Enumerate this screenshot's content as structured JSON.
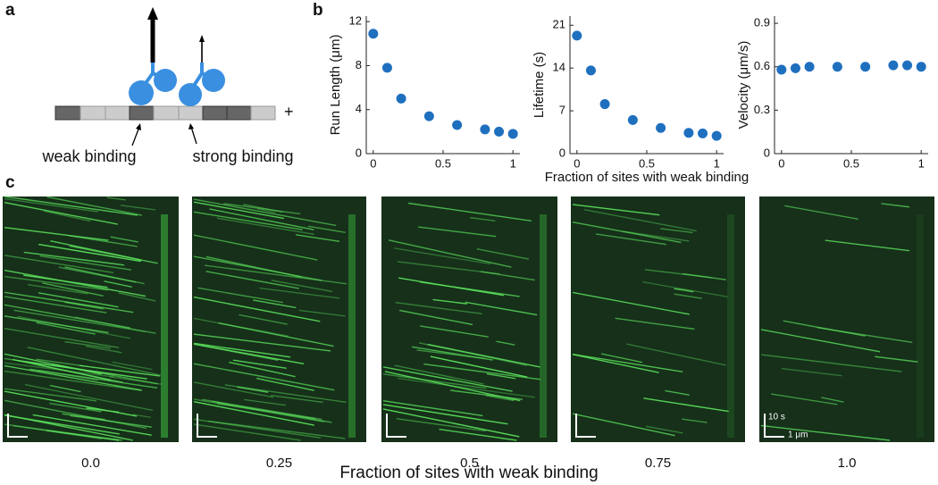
{
  "panel_labels": [
    "a",
    "b",
    "c"
  ],
  "diagram": {
    "labels": [
      "weak binding",
      "strong binding"
    ],
    "end": "+"
  },
  "chart_data": [
    {
      "type": "scatter",
      "ylabel": "Run Length (μm)",
      "color": "#1f6fbf",
      "x": [
        0,
        0.1,
        0.2,
        0.4,
        0.6,
        0.8,
        0.9,
        1
      ],
      "values": [
        10.9,
        7.8,
        5.0,
        3.4,
        2.6,
        2.2,
        2.0,
        1.8
      ],
      "xlim": [
        -0.05,
        1.05
      ],
      "xticks": [
        0,
        0.5,
        1
      ],
      "ylim": [
        0,
        12.5
      ],
      "yticks": [
        0,
        4,
        8,
        12
      ]
    },
    {
      "type": "scatter",
      "ylabel": "Lifetime (s)",
      "xlabel": "Fraction of sites with weak binding",
      "color": "#1f6fbf",
      "x": [
        0,
        0.1,
        0.2,
        0.4,
        0.6,
        0.8,
        0.9,
        1
      ],
      "values": [
        19.3,
        13.6,
        8.1,
        5.5,
        4.2,
        3.4,
        3.3,
        2.9
      ],
      "xlim": [
        -0.05,
        1.05
      ],
      "xticks": [
        0,
        0.5,
        1
      ],
      "ylim": [
        0,
        22.5
      ],
      "yticks": [
        0,
        7,
        14,
        21
      ]
    },
    {
      "type": "scatter",
      "ylabel": "Velocity (μm/s)",
      "color": "#1f6fbf",
      "x": [
        0,
        0.1,
        0.2,
        0.4,
        0.6,
        0.8,
        0.9,
        1
      ],
      "values": [
        0.58,
        0.59,
        0.6,
        0.6,
        0.6,
        0.61,
        0.61,
        0.6
      ],
      "xlim": [
        -0.05,
        1.05
      ],
      "xticks": [
        0,
        0.5,
        1
      ],
      "ylim": [
        0,
        0.95
      ],
      "yticks": [
        0,
        0.3,
        0.6,
        0.9
      ]
    }
  ],
  "kymographs": {
    "labels": [
      "0.0",
      "0.25",
      "0.5",
      "0.75",
      "1.0"
    ],
    "xlabel": "Fraction of sites with weak binding",
    "scale_bar": {
      "time": "10 s",
      "distance": "1 μm"
    }
  }
}
